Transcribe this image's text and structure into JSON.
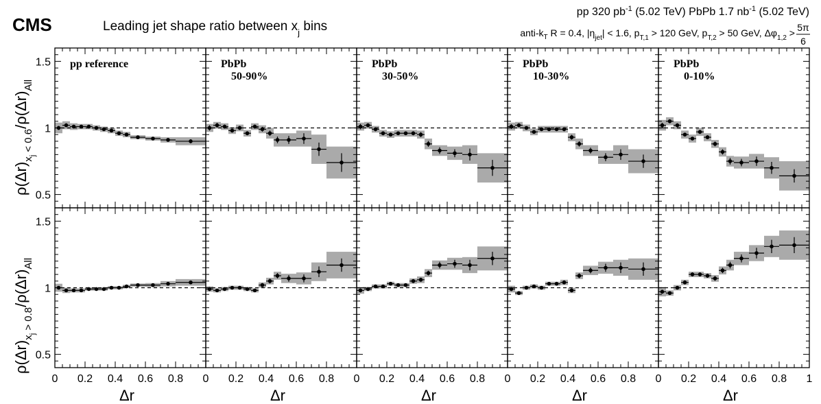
{
  "figure": {
    "experiment": "CMS",
    "title_main": "Leading jet shape ratio between x",
    "title_sub": "j",
    "title_tail": " bins",
    "lumi_line": {
      "pp": "pp 320 pb",
      "pp_exp": "-1",
      "pp_energy": " (5.02 TeV)   PbPb 1.7 nb",
      "pbpb_exp": "-1",
      "pbpb_energy": " (5.02 TeV)"
    },
    "cuts_line": {
      "p1": "anti-k",
      "p1_sub": "T",
      "p2": " R = 0.4, |η",
      "p2_sub": "jet",
      "p3": "| < 1.6, p",
      "p3_sub": "T,1",
      "p4": " > 120 GeV, p",
      "p4_sub": "T,2",
      "p5": " > 50 GeV, Δφ",
      "p5_sub": "1,2",
      "p6": " > ",
      "frac_num": "5π",
      "frac_den": "6"
    },
    "ylabel_top": {
      "a": "ρ(Δr)",
      "sub": "x",
      "subsub": "j",
      "subrest": " < 0.6",
      "b": "/ρ(Δr)",
      "bsub": "All"
    },
    "ylabel_bottom": {
      "a": "ρ(Δr)",
      "sub": "x",
      "subsub": "j",
      "subrest": " > 0.8",
      "b": "/ρ(Δr)",
      "bsub": "All"
    },
    "xlabel": "Δr",
    "colors": {
      "band": "#aaaaaa",
      "marker": "#000000",
      "reference": "#000000"
    }
  },
  "chart_data": {
    "type": "scatter",
    "x_ticks": [
      "0",
      "0.2",
      "0.4",
      "0.6",
      "0.8",
      "1"
    ],
    "y_ticks": [
      "0.5",
      "1",
      "1.5"
    ],
    "xlim": [
      0,
      1
    ],
    "ylim": [
      0.4,
      1.6
    ],
    "reference_line": 1,
    "bins": {
      "edges": [
        0,
        0.05,
        0.1,
        0.15,
        0.2,
        0.25,
        0.3,
        0.35,
        0.4,
        0.45,
        0.5,
        0.6,
        0.7,
        0.8,
        1.0
      ],
      "centers": [
        0.025,
        0.075,
        0.125,
        0.175,
        0.225,
        0.275,
        0.325,
        0.375,
        0.425,
        0.475,
        0.55,
        0.65,
        0.75,
        0.9
      ]
    },
    "columns": [
      {
        "label_line1": "pp reference",
        "label_line2": ""
      },
      {
        "label_line1": "PbPb",
        "label_line2": "50-90%"
      },
      {
        "label_line1": "PbPb",
        "label_line2": "30-50%"
      },
      {
        "label_line1": "PbPb",
        "label_line2": "10-30%"
      },
      {
        "label_line1": "PbPb",
        "label_line2": "0-10%"
      }
    ],
    "rows": [
      {
        "name": "xj < 0.6",
        "values": [
          [
            1.0,
            1.02,
            1.01,
            1.01,
            1.01,
            1.0,
            0.99,
            0.98,
            0.96,
            0.95,
            0.93,
            0.92,
            0.91,
            0.9
          ],
          [
            1.0,
            1.02,
            1.01,
            0.98,
            1.0,
            0.96,
            1.01,
            0.99,
            0.96,
            0.91,
            0.91,
            0.92,
            0.84,
            0.74
          ],
          [
            1.01,
            1.02,
            0.99,
            0.96,
            0.95,
            0.96,
            0.96,
            0.96,
            0.95,
            0.88,
            0.83,
            0.81,
            0.8,
            0.7
          ],
          [
            1.01,
            1.02,
            1.0,
            0.97,
            0.99,
            0.99,
            0.99,
            0.99,
            0.93,
            0.88,
            0.83,
            0.78,
            0.8,
            0.75
          ],
          [
            1.02,
            1.05,
            1.02,
            0.95,
            0.92,
            0.97,
            0.93,
            0.88,
            0.82,
            0.75,
            0.74,
            0.75,
            0.7,
            0.64
          ]
        ],
        "stat_err": [
          [
            0.015,
            0.015,
            0.012,
            0.01,
            0.01,
            0.01,
            0.01,
            0.01,
            0.01,
            0.01,
            0.008,
            0.008,
            0.01,
            0.015
          ],
          [
            0.02,
            0.018,
            0.015,
            0.015,
            0.015,
            0.015,
            0.015,
            0.018,
            0.02,
            0.025,
            0.03,
            0.04,
            0.05,
            0.07
          ],
          [
            0.02,
            0.015,
            0.015,
            0.015,
            0.012,
            0.012,
            0.012,
            0.015,
            0.018,
            0.022,
            0.025,
            0.03,
            0.045,
            0.06
          ],
          [
            0.018,
            0.015,
            0.012,
            0.012,
            0.012,
            0.012,
            0.012,
            0.015,
            0.018,
            0.02,
            0.022,
            0.03,
            0.04,
            0.05
          ],
          [
            0.018,
            0.015,
            0.015,
            0.012,
            0.012,
            0.015,
            0.015,
            0.018,
            0.02,
            0.025,
            0.028,
            0.035,
            0.045,
            0.05
          ]
        ],
        "sys_err": [
          [
            0.04,
            0.03,
            0.025,
            0.02,
            0.02,
            0.02,
            0.02,
            0.02,
            0.02,
            0.02,
            0.015,
            0.015,
            0.02,
            0.03
          ],
          [
            0.03,
            0.025,
            0.025,
            0.025,
            0.025,
            0.025,
            0.025,
            0.03,
            0.04,
            0.05,
            0.05,
            0.06,
            0.11,
            0.12
          ],
          [
            0.03,
            0.025,
            0.025,
            0.025,
            0.025,
            0.025,
            0.025,
            0.025,
            0.03,
            0.04,
            0.04,
            0.05,
            0.07,
            0.11
          ],
          [
            0.03,
            0.025,
            0.025,
            0.025,
            0.025,
            0.025,
            0.025,
            0.025,
            0.03,
            0.04,
            0.04,
            0.05,
            0.07,
            0.09
          ],
          [
            0.04,
            0.03,
            0.03,
            0.03,
            0.03,
            0.03,
            0.03,
            0.03,
            0.035,
            0.04,
            0.045,
            0.055,
            0.08,
            0.11
          ]
        ]
      },
      {
        "name": "xj > 0.8",
        "values": [
          [
            1.0,
            0.98,
            0.98,
            0.98,
            0.99,
            0.99,
            0.99,
            1.0,
            1.0,
            1.01,
            1.02,
            1.02,
            1.03,
            1.04
          ],
          [
            0.99,
            0.98,
            0.99,
            1.0,
            1.0,
            0.99,
            0.98,
            1.02,
            1.05,
            1.09,
            1.07,
            1.07,
            1.12,
            1.17
          ],
          [
            0.98,
            0.99,
            1.01,
            1.01,
            1.03,
            1.02,
            1.02,
            1.05,
            1.06,
            1.11,
            1.17,
            1.18,
            1.17,
            1.22
          ],
          [
            0.99,
            0.96,
            1.0,
            1.01,
            1.0,
            1.03,
            1.03,
            1.04,
            0.98,
            1.09,
            1.13,
            1.15,
            1.15,
            1.14
          ],
          [
            0.97,
            0.96,
            1.0,
            1.04,
            1.1,
            1.1,
            1.09,
            1.07,
            1.13,
            1.17,
            1.22,
            1.26,
            1.31,
            1.32
          ]
        ],
        "stat_err": [
          [
            0.012,
            0.01,
            0.01,
            0.01,
            0.008,
            0.008,
            0.008,
            0.008,
            0.008,
            0.008,
            0.008,
            0.008,
            0.01,
            0.012
          ],
          [
            0.015,
            0.012,
            0.012,
            0.012,
            0.012,
            0.012,
            0.012,
            0.015,
            0.018,
            0.02,
            0.025,
            0.03,
            0.04,
            0.05
          ],
          [
            0.015,
            0.012,
            0.012,
            0.012,
            0.012,
            0.012,
            0.012,
            0.015,
            0.015,
            0.018,
            0.025,
            0.03,
            0.04,
            0.05
          ],
          [
            0.015,
            0.012,
            0.012,
            0.012,
            0.012,
            0.012,
            0.012,
            0.015,
            0.015,
            0.018,
            0.022,
            0.03,
            0.04,
            0.05
          ],
          [
            0.015,
            0.012,
            0.012,
            0.015,
            0.015,
            0.015,
            0.015,
            0.018,
            0.02,
            0.025,
            0.03,
            0.04,
            0.05,
            0.06
          ]
        ],
        "sys_err": [
          [
            0.03,
            0.02,
            0.015,
            0.015,
            0.012,
            0.012,
            0.012,
            0.012,
            0.012,
            0.012,
            0.012,
            0.015,
            0.02,
            0.025
          ],
          [
            0.02,
            0.015,
            0.015,
            0.015,
            0.015,
            0.015,
            0.015,
            0.02,
            0.025,
            0.03,
            0.035,
            0.045,
            0.07,
            0.1
          ],
          [
            0.025,
            0.015,
            0.015,
            0.015,
            0.015,
            0.015,
            0.015,
            0.02,
            0.025,
            0.03,
            0.035,
            0.045,
            0.06,
            0.09
          ],
          [
            0.025,
            0.015,
            0.015,
            0.015,
            0.015,
            0.015,
            0.015,
            0.02,
            0.02,
            0.025,
            0.035,
            0.045,
            0.06,
            0.08
          ],
          [
            0.035,
            0.02,
            0.02,
            0.02,
            0.02,
            0.02,
            0.02,
            0.025,
            0.03,
            0.04,
            0.05,
            0.06,
            0.08,
            0.11
          ]
        ]
      }
    ]
  }
}
